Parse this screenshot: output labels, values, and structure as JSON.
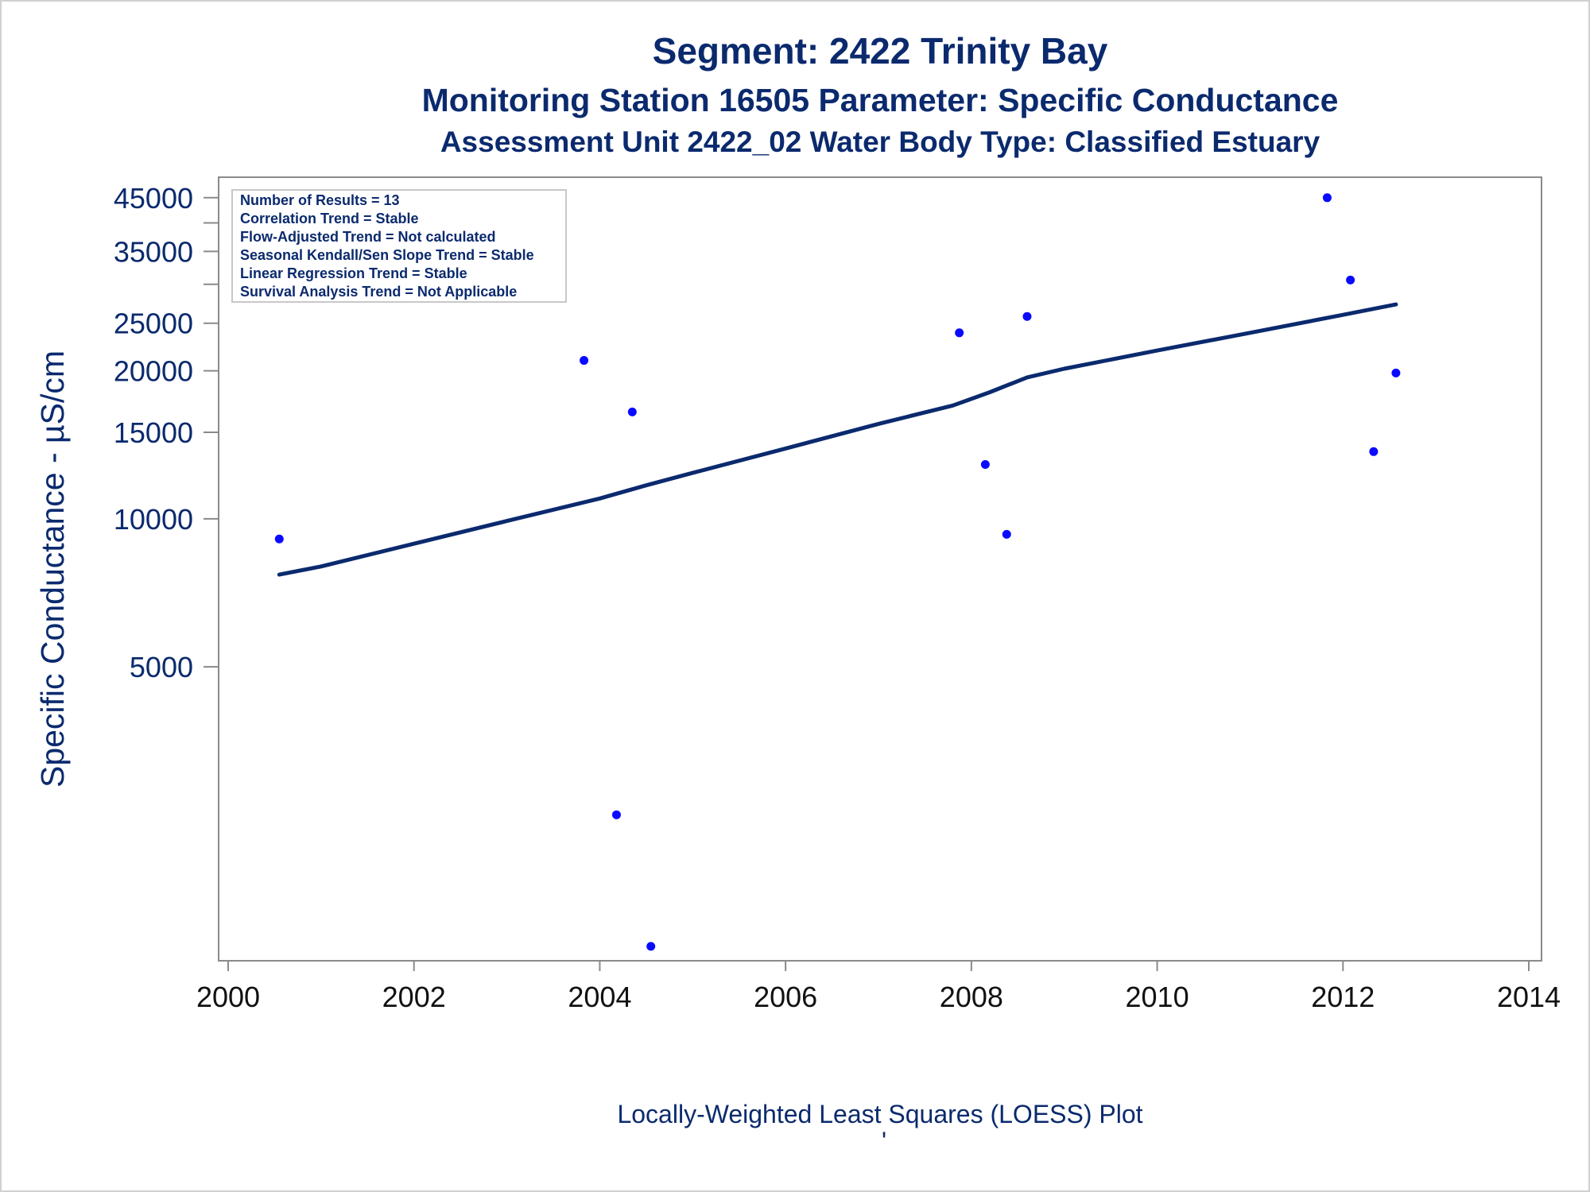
{
  "titles": {
    "line1": "Segment: 2422  Trinity Bay",
    "line2": "Monitoring Station 16505 Parameter: Specific Conductance",
    "line3": "Assessment Unit 2422_02   Water Body Type: Classified Estuary"
  },
  "footnote": "Locally-Weighted Least Squares (LOESS) Plot",
  "footnote_mark": "'",
  "inset_lines": [
    "Number of Results = 13",
    "Correlation Trend = Stable",
    "Flow-Adjusted Trend = Not calculated",
    "Seasonal Kendall/Sen Slope Trend = Stable",
    "Linear Regression Trend = Stable",
    "Survival Analysis Trend = Not Applicable"
  ],
  "colors": {
    "points": "#0a0aff",
    "loess_line": "#0b2a6e",
    "text": "#0b2a6e",
    "axis": "#8a8a8a"
  },
  "chart_data": {
    "type": "scatter",
    "ylabel": "Specific Conductance -  µS/cm",
    "xlabel": "",
    "y_scale": "log",
    "xlim": [
      2000,
      2014
    ],
    "ylim": [
      1300,
      46500
    ],
    "x_ticks": [
      "2000",
      "2002",
      "2004",
      "2006",
      "2008",
      "2010",
      "2012",
      "2014"
    ],
    "y_ticks": [
      "5000",
      "10000",
      "15000",
      "20000",
      "25000",
      "35000",
      "45000"
    ],
    "y_minor_ticks": [
      30000,
      40000
    ],
    "grid": false,
    "inset_position": "top-left",
    "series": [
      {
        "kind": "points",
        "x": [
          2000.55,
          2003.83,
          2004.18,
          2004.35,
          2004.55,
          2007.87,
          2008.15,
          2008.38,
          2008.6,
          2011.83,
          2012.08,
          2012.33,
          2012.57
        ],
        "y": [
          9100,
          21000,
          2500,
          16500,
          1350,
          23900,
          12900,
          9300,
          25800,
          45000,
          30600,
          13700,
          19800
        ]
      },
      {
        "kind": "loess",
        "x": [
          2000.55,
          2001,
          2002,
          2003,
          2004,
          2004.5,
          2005,
          2006,
          2007,
          2007.8,
          2008.2,
          2008.6,
          2009,
          2010,
          2011,
          2012,
          2012.57
        ],
        "y": [
          7700,
          8000,
          8900,
          9900,
          11000,
          11700,
          12400,
          13900,
          15600,
          17000,
          18100,
          19400,
          20200,
          22000,
          23900,
          26000,
          27300
        ]
      }
    ]
  }
}
